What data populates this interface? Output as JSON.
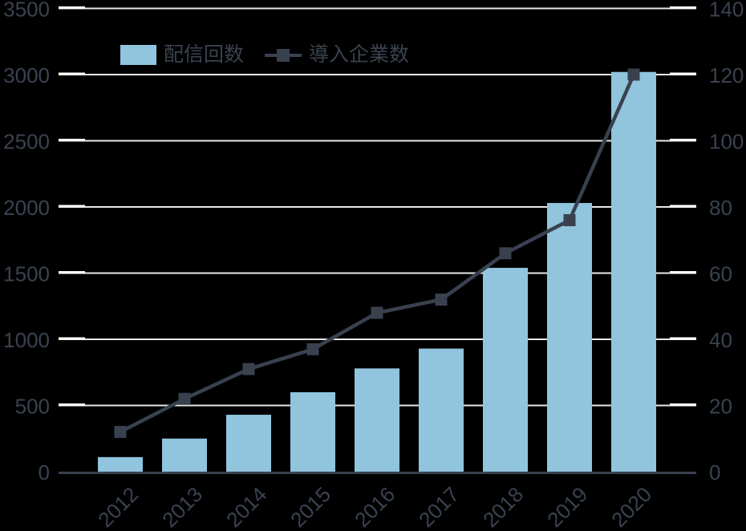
{
  "chart_data": {
    "type": "combo",
    "categories": [
      "2012",
      "2013",
      "2014",
      "2015",
      "2016",
      "2017",
      "2018",
      "2019",
      "2020"
    ],
    "series": [
      {
        "name": "配信回数",
        "type": "bar",
        "axis": "left",
        "color": "#91c4dd",
        "values": [
          110,
          250,
          430,
          600,
          780,
          930,
          1540,
          2030,
          3020
        ]
      },
      {
        "name": "導入企業数",
        "type": "line",
        "axis": "right",
        "color": "#39414f",
        "values": [
          12,
          22,
          31,
          37,
          48,
          52,
          66,
          76,
          120
        ]
      }
    ],
    "left_axis": {
      "min": 0,
      "max": 3500,
      "step": 500,
      "tick_labels": [
        "0",
        "500",
        "1000",
        "1500",
        "2000",
        "2500",
        "3000",
        "3500"
      ]
    },
    "right_axis": {
      "min": 0,
      "max": 140,
      "step": 20,
      "tick_labels": [
        "0",
        "20",
        "40",
        "60",
        "80",
        "100",
        "120",
        "140"
      ]
    },
    "grid": true,
    "legend_position": "top-left",
    "colors": {
      "background": "#000000",
      "gridline": "#e8e8e8",
      "tick": "#ffffff",
      "text": "#3a4250",
      "axis_line": "#39414f"
    }
  }
}
